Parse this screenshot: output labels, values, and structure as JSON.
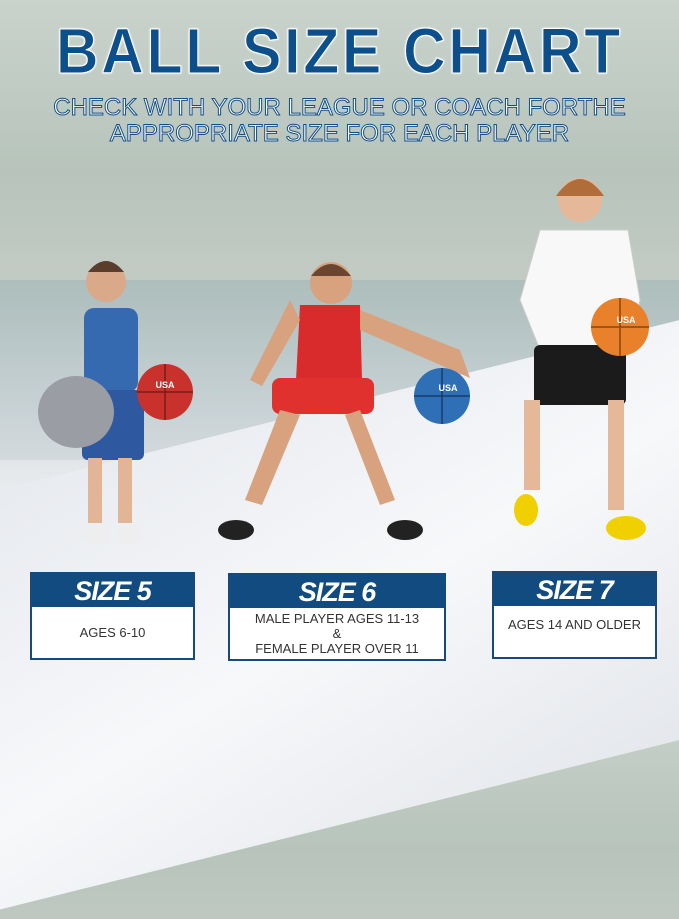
{
  "title": "BALL SIZE CHART",
  "subtitle": [
    "CHECK WITH YOUR LEAGUE OR COACH FORTHE",
    "APPROPRIATE SIZE FOR EACH PLAYER"
  ],
  "ball_logo": "USA",
  "colors": {
    "brand_blue": "#124b80",
    "ball_red": "#c8312c",
    "ball_blue": "#2f6fb6",
    "ball_orange": "#e9802a"
  },
  "sizes": [
    {
      "label": "SIZE 5",
      "lines": [
        "AGES 6-10"
      ]
    },
    {
      "label": "SIZE 6",
      "lines": [
        "MALE PLAYER AGES 11-13",
        "&",
        "FEMALE PLAYER OVER 11"
      ]
    },
    {
      "label": "SIZE 7",
      "lines": [
        "AGES 14 AND OLDER"
      ]
    }
  ]
}
